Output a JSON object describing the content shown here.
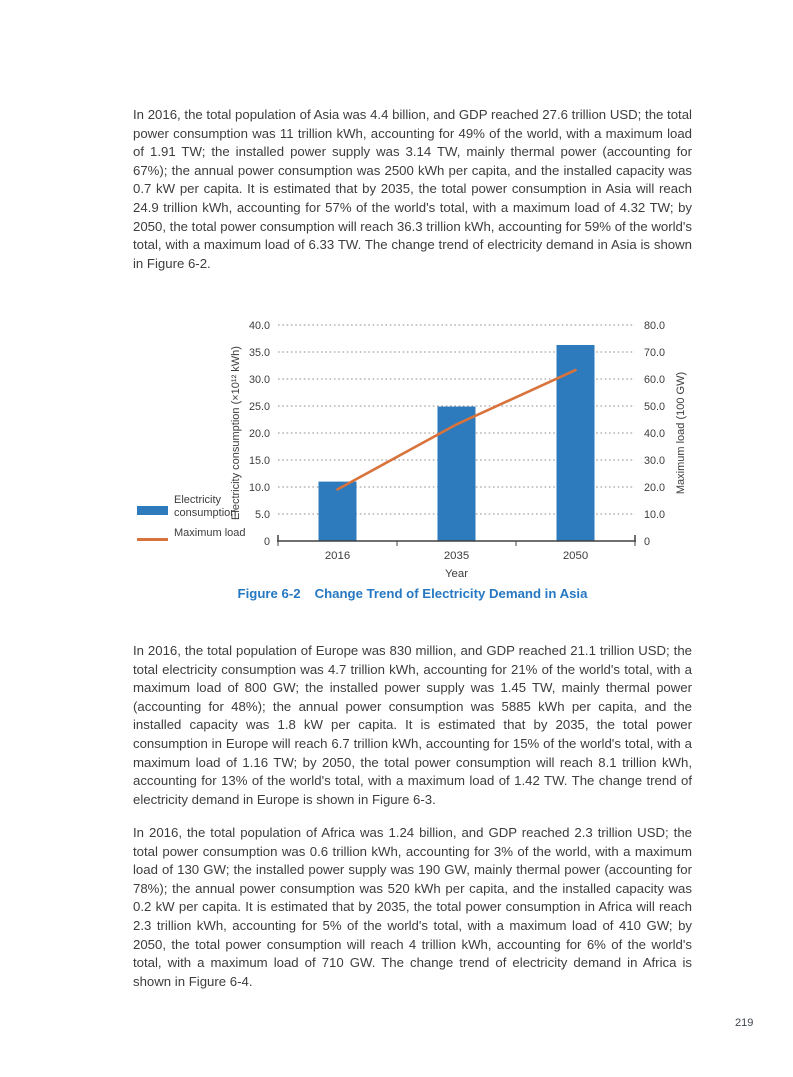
{
  "page": {
    "number": "219"
  },
  "paragraphs": {
    "asia": "In 2016, the total population of Asia was 4.4 billion, and GDP reached 27.6 trillion USD; the total power consumption was 11 trillion kWh, accounting for 49% of the world, with a maximum load of 1.91 TW; the installed power supply was 3.14 TW, mainly thermal power (accounting for 67%); the annual power consumption was 2500 kWh per capita, and the installed capacity was 0.7 kW per capita. It is estimated that by 2035, the total power consumption in Asia will reach 24.9 trillion kWh, accounting for 57% of the world's total, with a maximum load of 4.32 TW; by 2050, the total power consumption will reach 36.3 trillion kWh, accounting for 59% of the world's total, with a maximum load of 6.33 TW. The change trend of electricity demand in Asia is shown in Figure 6-2.",
    "europe": "In 2016, the total population of Europe was 830 million, and GDP reached 21.1 trillion USD; the total electricity consumption was 4.7 trillion kWh, accounting for 21% of the world's total, with a maximum load of 800 GW; the installed power supply was 1.45 TW, mainly thermal power (accounting for 48%); the annual power consumption was 5885 kWh per capita, and the installed capacity was 1.8 kW per capita. It is estimated that by 2035, the total power consumption in Europe will reach 6.7 trillion kWh, accounting for 15% of the world's total, with a maximum load of 1.16 TW; by 2050, the total power consumption will reach 8.1 trillion kWh, accounting for 13% of the world's total, with a maximum load of 1.42 TW. The change trend of electricity demand in Europe is shown in Figure 6-3.",
    "africa": "In 2016, the total population of Africa was 1.24 billion, and GDP reached 2.3 trillion USD; the total power consumption was 0.6 trillion kWh, accounting for 3% of the world, with a maximum load of 130 GW; the installed power supply was 190 GW, mainly thermal power (accounting for 78%); the annual power consumption was 520 kWh per capita, and the installed capacity was 0.2 kW per capita. It is estimated that by 2035, the total power consumption in Africa will reach 2.3 trillion kWh, accounting for 5% of the world's total, with a maximum load of 410 GW; by 2050, the total power consumption will reach 4 trillion kWh, accounting for 6% of the world's total, with a maximum load of 710 GW. The change trend of electricity demand in Africa is shown in Figure 6-4."
  },
  "figure": {
    "label": "Figure 6-2",
    "title": "Change Trend of Electricity Demand in Asia",
    "caption_color": "#2578c1"
  },
  "chart_data": {
    "type": "bar",
    "subtype": "bar+line combo",
    "categories": [
      "2016",
      "2035",
      "2050"
    ],
    "series": [
      {
        "name": "Electricity consumption",
        "type": "bar",
        "axis": "left",
        "values": [
          11,
          24.9,
          36.3
        ],
        "color": "#2d7bbc"
      },
      {
        "name": "Maximum load",
        "type": "line",
        "axis": "right",
        "values": [
          19.1,
          43.2,
          63.3
        ],
        "color": "#d9733c"
      }
    ],
    "title": "",
    "xlabel": "Year",
    "left_axis": {
      "label": "Electricity consumption (×10¹² kWh)",
      "min": 0,
      "max": 40,
      "step": 5,
      "ticks": [
        "0",
        "5.0",
        "10.0",
        "15.0",
        "20.0",
        "25.0",
        "30.0",
        "35.0",
        "40.0"
      ]
    },
    "right_axis": {
      "label": "Maximum load (100 GW)",
      "min": 0,
      "max": 80,
      "step": 10,
      "ticks": [
        "0",
        "10.0",
        "20.0",
        "30.0",
        "40.0",
        "50.0",
        "60.0",
        "70.0",
        "80.0"
      ]
    },
    "grid": "dotted horizontal",
    "grid_color": "#8c8c8c",
    "axis_color": "#404040",
    "legend_position": "left"
  }
}
